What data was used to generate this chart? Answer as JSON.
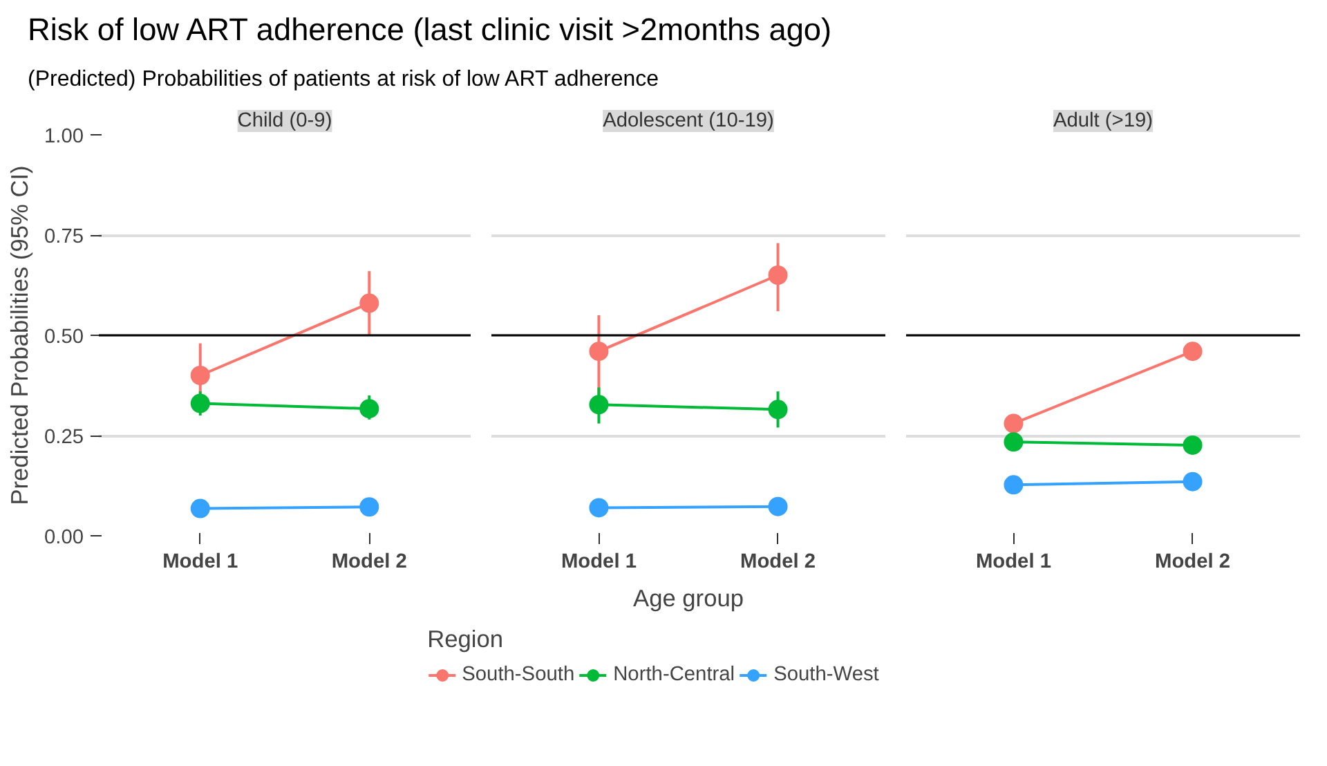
{
  "chart_data": [
    {
      "type": "line",
      "title": "Child (0-9)",
      "annotations": [
        "Risk of low ART adherence (last clinic visit >2months ago)",
        "(Predicted) Probabilities of patients at risk of low ART adherence"
      ],
      "ylabel": "Predicted Probabilities (95% CI)",
      "categories": [
        "Model 1",
        "Model 2"
      ],
      "ylim": [
        0,
        1
      ],
      "yticks": [
        {
          "value": 0,
          "label": "0.00"
        },
        {
          "value": 0.25,
          "label": "0.25"
        },
        {
          "value": 0.5,
          "label": "0.50"
        },
        {
          "value": 0.75,
          "label": "0.75"
        },
        {
          "value": 1,
          "label": "1.00"
        }
      ],
      "grid": "y",
      "marker": "circle",
      "line_style": "solid",
      "ref_lines": [
        {
          "axis": "y",
          "value": 0.5,
          "color": "#000000"
        }
      ],
      "series": [
        {
          "color": "#f8766d",
          "values": [
            0.4,
            0.58
          ],
          "errors": [
            [
              0.35,
              0.48
            ],
            [
              0.5,
              0.66
            ]
          ]
        },
        {
          "color": "#00ba38",
          "values": [
            0.33,
            0.317
          ],
          "errors": [
            [
              0.3,
              0.36
            ],
            [
              0.29,
              0.35
            ]
          ]
        },
        {
          "color": "#35a2ff",
          "values": [
            0.068,
            0.072
          ],
          "errors": [
            null,
            [
              0.06,
              0.09
            ]
          ]
        }
      ]
    },
    {
      "type": "line",
      "title": "Adolescent (10-19)",
      "xlabel": "Age group",
      "legend_title": "Region",
      "legend": "bottom",
      "tick_labels": "x",
      "categories": [
        "Model 1",
        "Model 2"
      ],
      "ylim": [
        0,
        1
      ],
      "yticks": [
        0,
        0.25,
        0.5,
        0.75,
        1
      ],
      "grid": "y",
      "marker": "circle",
      "line_style": "solid",
      "ref_lines": [
        {
          "axis": "y",
          "value": 0.5,
          "color": "#000000"
        }
      ],
      "series": [
        {
          "name": "South-South",
          "color": "#f8766d",
          "values": [
            0.46,
            0.65
          ],
          "errors": [
            [
              0.35,
              0.55
            ],
            [
              0.56,
              0.73
            ]
          ]
        },
        {
          "name": "North-Central",
          "color": "#00ba38",
          "values": [
            0.327,
            0.315
          ],
          "errors": [
            [
              0.28,
              0.37
            ],
            [
              0.27,
              0.36
            ]
          ]
        },
        {
          "name": "South-West",
          "color": "#35a2ff",
          "values": [
            0.07,
            0.073
          ],
          "errors": [
            null,
            [
              0.06,
              0.09
            ]
          ]
        }
      ]
    },
    {
      "type": "line",
      "title": "Adult (>19)",
      "tick_labels": "x",
      "categories": [
        "Model 1",
        "Model 2"
      ],
      "ylim": [
        0,
        1
      ],
      "yticks": [
        0,
        0.25,
        0.5,
        0.75,
        1
      ],
      "grid": "y",
      "marker": "circle",
      "line_style": "solid",
      "ref_lines": [
        {
          "axis": "y",
          "value": 0.5,
          "color": "#000000"
        }
      ],
      "series": [
        {
          "color": "#f8766d",
          "values": [
            0.28,
            0.46
          ]
        },
        {
          "color": "#00ba38",
          "values": [
            0.234,
            0.226
          ]
        },
        {
          "color": "#35a2ff",
          "values": [
            0.127,
            0.135
          ]
        }
      ]
    }
  ]
}
